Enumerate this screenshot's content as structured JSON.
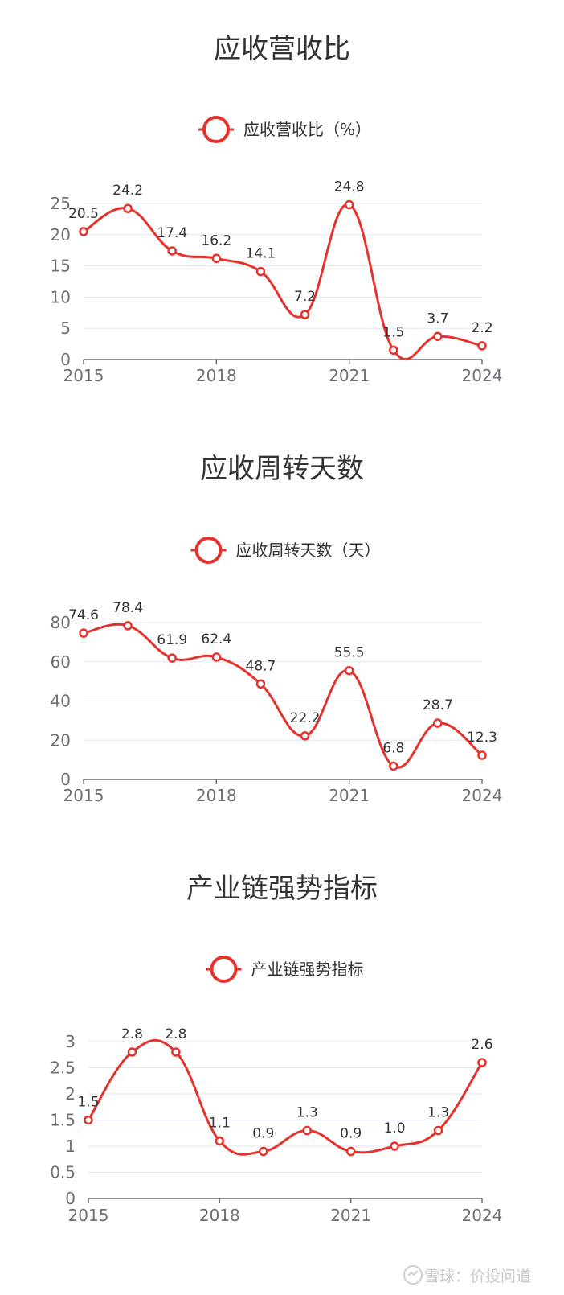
{
  "colors": {
    "series": "#e5322d",
    "grid": "#e2e6f0",
    "axis": "#6e7079",
    "label": "#333333",
    "title": "#333333"
  },
  "watermark": {
    "text": "雪球：价投问道"
  },
  "chart_data": [
    {
      "type": "line",
      "title": "应收营收比",
      "legend": "应收营收比（%）",
      "x": [
        "2015",
        "2016",
        "2017",
        "2018",
        "2019",
        "2020",
        "2021",
        "2022",
        "2023",
        "2024"
      ],
      "x_tick_labels": [
        "2015",
        "2018",
        "2021",
        "2024"
      ],
      "values": [
        20.5,
        24.2,
        17.4,
        16.2,
        14.1,
        7.2,
        24.8,
        1.5,
        3.7,
        2.2
      ],
      "value_labels": [
        "20.5",
        "24.2",
        "17.4",
        "16.2",
        "14.1",
        "7.2",
        "24.8",
        "1.5",
        "3.7",
        "2.2"
      ],
      "y_ticks": [
        "0",
        "5",
        "10",
        "15",
        "20",
        "25"
      ],
      "ylim": [
        0,
        25
      ],
      "grid": true,
      "legend_position": "top-center"
    },
    {
      "type": "line",
      "title": "应收周转天数",
      "legend": "应收周转天数（天）",
      "x": [
        "2015",
        "2016",
        "2017",
        "2018",
        "2019",
        "2020",
        "2021",
        "2022",
        "2023",
        "2024"
      ],
      "x_tick_labels": [
        "2015",
        "2018",
        "2021",
        "2024"
      ],
      "values": [
        74.6,
        78.4,
        61.9,
        62.4,
        48.7,
        22.2,
        55.5,
        6.8,
        28.7,
        12.3
      ],
      "value_labels": [
        "74.6",
        "78.4",
        "61.9",
        "62.4",
        "48.7",
        "22.2",
        "55.5",
        "6.8",
        "28.7",
        "12.3"
      ],
      "y_ticks": [
        "0",
        "20",
        "40",
        "60",
        "80"
      ],
      "ylim": [
        0,
        80
      ],
      "grid": true,
      "legend_position": "top-center"
    },
    {
      "type": "line",
      "title": "产业链强势指标",
      "legend": "产业链强势指标",
      "x": [
        "2015",
        "2016",
        "2017",
        "2018",
        "2019",
        "2020",
        "2021",
        "2022",
        "2023",
        "2024"
      ],
      "x_tick_labels": [
        "2015",
        "2018",
        "2021",
        "2024"
      ],
      "values": [
        1.5,
        2.8,
        2.8,
        1.1,
        0.9,
        1.3,
        0.9,
        1.0,
        1.3,
        2.6
      ],
      "value_labels": [
        "1.5",
        "2.8",
        "2.8",
        "1.1",
        "0.9",
        "1.3",
        "0.9",
        "1.0",
        "1.3",
        "2.6"
      ],
      "y_ticks": [
        "0",
        "0.5",
        "1",
        "1.5",
        "2",
        "2.5",
        "3"
      ],
      "ylim": [
        0,
        3
      ],
      "grid": true,
      "legend_position": "top-center"
    }
  ]
}
